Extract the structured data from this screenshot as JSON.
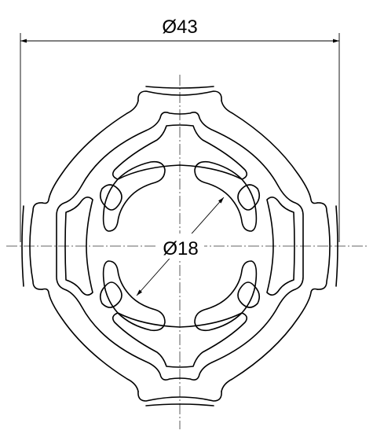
{
  "drawing": {
    "outer_diameter_label": "Ø43",
    "inner_diameter_label": "Ø18"
  }
}
